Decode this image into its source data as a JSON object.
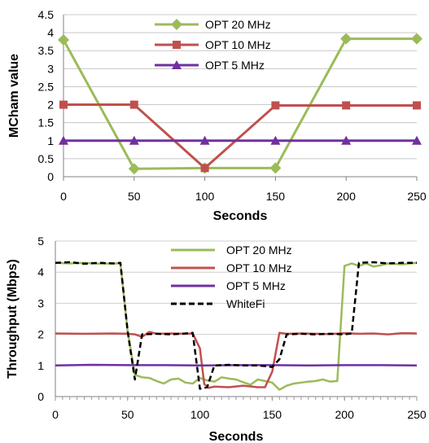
{
  "chart_data": [
    {
      "type": "line",
      "title": "",
      "xlabel": "Seconds",
      "ylabel": "MCham value",
      "xlim": [
        0,
        250
      ],
      "ylim": [
        0,
        4.5
      ],
      "x_ticks": [
        "0",
        "50",
        "100",
        "150",
        "200",
        "250"
      ],
      "y_ticks": [
        "0",
        "0.5",
        "1",
        "1.5",
        "2",
        "2.5",
        "3",
        "3.5",
        "4",
        "4.5"
      ],
      "grid": "horizontal",
      "legend_position": "top-center",
      "series": [
        {
          "name": "OPT 20 MHz",
          "color": "#9bbb59",
          "marker": "diamond",
          "x": [
            0,
            50,
            100,
            150,
            200,
            250
          ],
          "y": [
            3.8,
            0.22,
            0.24,
            0.24,
            3.83,
            3.83
          ]
        },
        {
          "name": "OPT 10 MHz",
          "color": "#c0504d",
          "marker": "square",
          "x": [
            0,
            50,
            100,
            150,
            200,
            250
          ],
          "y": [
            2.0,
            2.0,
            0.24,
            1.98,
            1.98,
            1.98
          ]
        },
        {
          "name": "OPT 5 MHz",
          "color": "#7030a0",
          "marker": "triangle",
          "x": [
            0,
            50,
            100,
            150,
            200,
            250
          ],
          "y": [
            1.0,
            1.0,
            1.0,
            1.0,
            1.0,
            1.0
          ]
        }
      ]
    },
    {
      "type": "line",
      "title": "",
      "xlabel": "Seconds",
      "ylabel": "Throughput (Mbps)",
      "xlim": [
        0,
        250
      ],
      "ylim": [
        0,
        5
      ],
      "x_ticks": [
        "0",
        "50",
        "100",
        "150",
        "200",
        "250"
      ],
      "y_ticks": [
        "0",
        "1",
        "2",
        "3",
        "4",
        "5"
      ],
      "grid": "horizontal",
      "legend_position": "top-center",
      "series": [
        {
          "name": "OPT 20 MHz",
          "color": "#9bbb59",
          "dash": "solid",
          "x": [
            0,
            10,
            20,
            30,
            40,
            45,
            50,
            55,
            60,
            65,
            70,
            75,
            80,
            85,
            90,
            95,
            100,
            105,
            110,
            115,
            120,
            125,
            130,
            135,
            140,
            145,
            150,
            155,
            160,
            165,
            170,
            175,
            180,
            185,
            190,
            195,
            200,
            205,
            210,
            215,
            220,
            225,
            230,
            240,
            250
          ],
          "y": [
            4.3,
            4.28,
            4.3,
            4.27,
            4.28,
            4.28,
            2.1,
            0.7,
            0.62,
            0.6,
            0.5,
            0.42,
            0.55,
            0.58,
            0.45,
            0.42,
            0.6,
            0.52,
            0.48,
            0.62,
            0.58,
            0.55,
            0.46,
            0.38,
            0.55,
            0.5,
            0.45,
            0.22,
            0.35,
            0.42,
            0.45,
            0.48,
            0.5,
            0.55,
            0.48,
            0.5,
            4.2,
            4.28,
            4.2,
            4.28,
            4.18,
            4.22,
            4.28,
            4.25,
            4.3
          ]
        },
        {
          "name": "OPT 10 MHz",
          "color": "#c0504d",
          "dash": "solid",
          "x": [
            0,
            20,
            40,
            50,
            55,
            60,
            65,
            70,
            80,
            90,
            95,
            100,
            103,
            106,
            110,
            120,
            130,
            140,
            145,
            150,
            155,
            160,
            170,
            180,
            190,
            200,
            210,
            220,
            230,
            240,
            250
          ],
          "y": [
            2.03,
            2.02,
            2.03,
            2.02,
            2.0,
            1.92,
            2.08,
            2.02,
            2.03,
            2.02,
            2.03,
            1.55,
            0.4,
            0.28,
            0.32,
            0.3,
            0.35,
            0.3,
            0.3,
            0.8,
            2.05,
            2.02,
            2.03,
            2.02,
            2.01,
            2.04,
            2.02,
            2.03,
            2.0,
            2.04,
            2.03
          ]
        },
        {
          "name": "OPT 5 MHz",
          "color": "#7030a0",
          "dash": "solid",
          "x": [
            0,
            25,
            50,
            75,
            100,
            125,
            150,
            175,
            200,
            225,
            250
          ],
          "y": [
            1.0,
            1.02,
            1.01,
            1.01,
            1.0,
            1.01,
            1.01,
            1.0,
            1.01,
            1.01,
            1.0
          ]
        },
        {
          "name": "WhiteFi",
          "color": "#000000",
          "dash": "dashed",
          "x": [
            0,
            10,
            20,
            30,
            40,
            45,
            50,
            55,
            60,
            70,
            80,
            90,
            95,
            100,
            105,
            110,
            120,
            130,
            140,
            145,
            150,
            155,
            160,
            170,
            180,
            190,
            200,
            205,
            210,
            220,
            230,
            240,
            250
          ],
          "y": [
            4.3,
            4.32,
            4.27,
            4.3,
            4.28,
            4.3,
            2.1,
            0.55,
            2.0,
            2.02,
            2.0,
            2.03,
            2.05,
            0.25,
            0.3,
            1.0,
            1.02,
            1.0,
            1.0,
            0.98,
            0.95,
            1.2,
            2.0,
            2.02,
            2.0,
            2.02,
            2.0,
            2.03,
            4.3,
            4.32,
            4.28,
            4.3,
            4.3
          ]
        }
      ]
    }
  ]
}
